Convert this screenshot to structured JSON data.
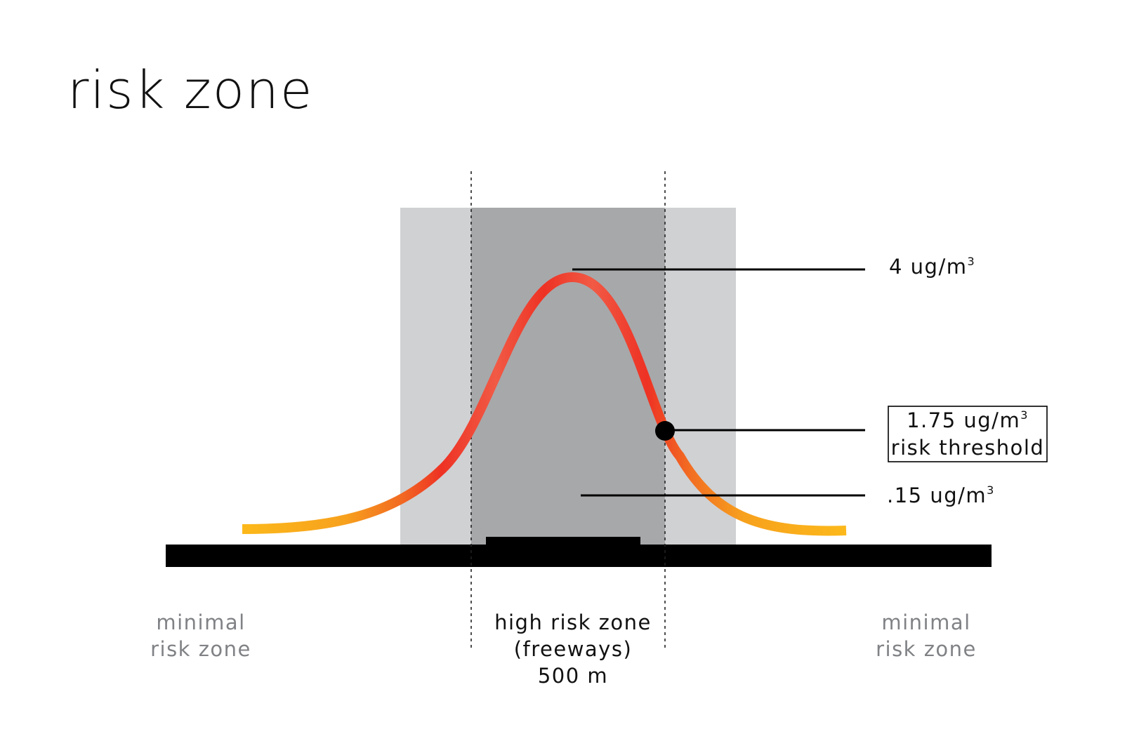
{
  "title": "risk zone",
  "colors": {
    "outer_zone_fill": "#d0d1d3",
    "inner_zone_fill": "#a7a8aa",
    "road_fill": "#000000",
    "curve_peak": "#ee3224",
    "curve_tail": "#fcb91b",
    "threshold_marker": "#000000",
    "muted_text": "#808285"
  },
  "icons": {
    "threshold_marker": "filled-circle"
  },
  "annotations": {
    "peak": {
      "value_text": "4 ug/m",
      "unit_exponent": "3"
    },
    "threshold": {
      "value_text": "1.75 ug/m",
      "unit_exponent": "3",
      "label": "risk threshold"
    },
    "baseline": {
      "value_text": ".15 ug/m",
      "unit_exponent": "3"
    }
  },
  "zones": {
    "left": {
      "line1": "minimal",
      "line2": "risk zone"
    },
    "center": {
      "line1": "high risk zone",
      "line2": "(freeways)",
      "line3": "500 m"
    },
    "right": {
      "line1": "minimal",
      "line2": "risk zone"
    }
  }
}
